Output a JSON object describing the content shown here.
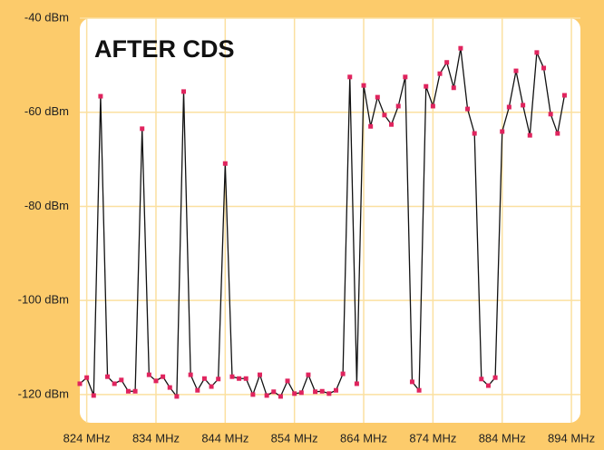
{
  "chart_data": {
    "type": "line",
    "title": "AFTER CDS",
    "x": [
      823,
      824,
      825,
      826,
      827,
      828,
      829,
      830,
      831,
      832,
      833,
      834,
      835,
      836,
      837,
      838,
      839,
      840,
      841,
      842,
      843,
      844,
      845,
      846,
      847,
      848,
      849,
      850,
      851,
      852,
      853,
      854,
      855,
      856,
      857,
      858,
      859,
      860,
      861,
      862,
      863,
      864,
      865,
      866,
      867,
      868,
      869,
      870,
      871,
      872,
      873,
      874,
      875,
      876,
      877,
      878,
      879,
      880,
      881,
      882,
      883,
      884,
      885,
      886,
      887,
      888,
      889,
      890,
      891,
      892,
      893
    ],
    "series": [
      {
        "line_color": "#111111",
        "marker_color": "#e0245e",
        "values": [
          -117.7,
          -116.4,
          -120.2,
          -56.6,
          -116.2,
          -117.7,
          -116.9,
          -119.3,
          -119.3,
          -63.5,
          -115.8,
          -117.1,
          -116.2,
          -118.5,
          -120.4,
          -55.6,
          -115.8,
          -119.1,
          -116.6,
          -118.3,
          -116.7,
          -70.9,
          -116.2,
          -116.6,
          -116.6,
          -120.0,
          -115.8,
          -120.2,
          -119.4,
          -120.4,
          -117.1,
          -119.8,
          -119.6,
          -115.8,
          -119.4,
          -119.3,
          -119.8,
          -119.1,
          -115.6,
          -52.5,
          -117.7,
          -54.3,
          -63.0,
          -56.8,
          -60.6,
          -62.6,
          -58.7,
          -52.5,
          -117.3,
          -119.1,
          -54.5,
          -58.7,
          -51.8,
          -49.4,
          -54.8,
          -46.4,
          -59.3,
          -64.5,
          -116.7,
          -118.1,
          -116.4,
          -64.1,
          -58.9,
          -51.2,
          -58.5,
          -64.9,
          -47.3,
          -50.6,
          -60.4,
          -64.5,
          -56.4
        ]
      }
    ],
    "xlim": [
      823,
      895.3
    ],
    "ylim": [
      -126,
      -40
    ],
    "xticks": [
      {
        "value": 824,
        "label": "824 MHz"
      },
      {
        "value": 834,
        "label": "834 MHz"
      },
      {
        "value": 844,
        "label": "844 MHz"
      },
      {
        "value": 854,
        "label": "854 MHz"
      },
      {
        "value": 864,
        "label": "864 MHz"
      },
      {
        "value": 874,
        "label": "874 MHz"
      },
      {
        "value": 884,
        "label": "884 MHz"
      },
      {
        "value": 894,
        "label": "894 MHz"
      }
    ],
    "yticks": [
      {
        "value": -40,
        "label": "-40 dBm"
      },
      {
        "value": -60,
        "label": "-60 dBm"
      },
      {
        "value": -80,
        "label": "-80 dBm"
      },
      {
        "value": -100,
        "label": "-100 dBm"
      },
      {
        "value": -120,
        "label": "-120 dBm"
      }
    ],
    "grid": true
  }
}
